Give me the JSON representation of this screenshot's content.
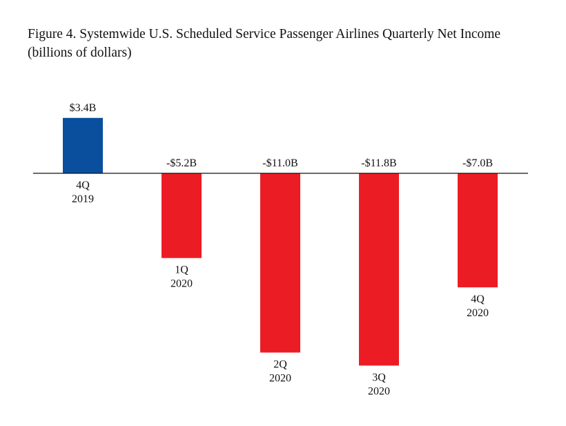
{
  "title_line1": "Figure 4. Systemwide U.S. Scheduled Service Passenger Airlines Quarterly Net Income",
  "title_line2": "(billions of dollars)",
  "chart_data": {
    "type": "bar",
    "title": "Figure 4. Systemwide U.S. Scheduled Service Passenger Airlines Quarterly Net Income (billions of dollars)",
    "unit": "billions of dollars",
    "categories": [
      [
        "4Q",
        "2019"
      ],
      [
        "1Q",
        "2020"
      ],
      [
        "2Q",
        "2020"
      ],
      [
        "3Q",
        "2020"
      ],
      [
        "4Q",
        "2020"
      ]
    ],
    "values": [
      3.4,
      -5.2,
      -11.0,
      -11.8,
      -7.0
    ],
    "data_labels": [
      "$3.4B",
      "-$5.2B",
      "-$11.0B",
      "-$11.8B",
      "-$7.0B"
    ],
    "colors": [
      "#0a4f9e",
      "#ec1c24",
      "#ec1c24",
      "#ec1c24",
      "#ec1c24"
    ],
    "axis_color": "#111111",
    "grid": false,
    "legend": "none"
  }
}
